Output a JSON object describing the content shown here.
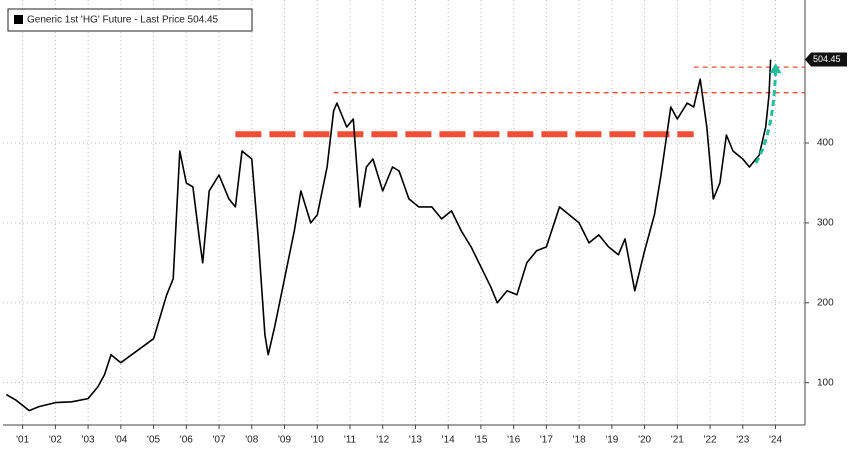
{
  "chart_data": {
    "type": "line",
    "x": [
      2001.0,
      2001.3,
      2001.7,
      2002.0,
      2002.5,
      2003.0,
      2003.5,
      2003.8,
      2004.0,
      2004.2,
      2004.5,
      2005.0,
      2005.5,
      2005.9,
      2006.1,
      2006.3,
      2006.5,
      2006.7,
      2006.9,
      2007.0,
      2007.2,
      2007.5,
      2007.8,
      2008.0,
      2008.2,
      2008.5,
      2008.7,
      2008.9,
      2009.0,
      2009.2,
      2009.5,
      2009.8,
      2010.0,
      2010.3,
      2010.5,
      2010.8,
      2011.0,
      2011.1,
      2011.4,
      2011.6,
      2011.8,
      2012.0,
      2012.2,
      2012.5,
      2012.8,
      2013.0,
      2013.3,
      2013.6,
      2014.0,
      2014.3,
      2014.6,
      2014.9,
      2015.2,
      2015.5,
      2015.8,
      2016.0,
      2016.3,
      2016.6,
      2016.9,
      2017.2,
      2017.5,
      2017.9,
      2018.2,
      2018.5,
      2018.8,
      2019.1,
      2019.4,
      2019.7,
      2019.9,
      2020.2,
      2020.5,
      2020.8,
      2021.0,
      2021.3,
      2021.5,
      2021.8,
      2022.0,
      2022.2,
      2022.4,
      2022.6,
      2022.8,
      2023.0,
      2023.2,
      2023.5,
      2023.7,
      2023.9,
      2024.0,
      2024.2,
      2024.3,
      2024.35
    ],
    "series": [
      {
        "name": "Generic 1st 'HG' Future - Last Price 504.45",
        "color": "#000000",
        "values": [
          85,
          78,
          65,
          70,
          75,
          76,
          80,
          95,
          110,
          135,
          125,
          140,
          155,
          210,
          230,
          390,
          350,
          345,
          280,
          250,
          340,
          360,
          330,
          320,
          390,
          380,
          280,
          160,
          135,
          170,
          230,
          290,
          340,
          300,
          310,
          370,
          440,
          450,
          420,
          430,
          320,
          370,
          380,
          340,
          370,
          365,
          330,
          320,
          320,
          305,
          315,
          290,
          270,
          245,
          220,
          200,
          215,
          210,
          250,
          265,
          270,
          320,
          310,
          300,
          275,
          285,
          270,
          260,
          280,
          215,
          265,
          310,
          360,
          445,
          430,
          450,
          445,
          480,
          420,
          330,
          350,
          410,
          390,
          380,
          370,
          380,
          385,
          420,
          460,
          504.45
        ]
      }
    ],
    "last_price": 504.45,
    "levels": [
      {
        "value": 411,
        "from": 2008.0,
        "to": 2022.0,
        "style": "thick"
      },
      {
        "value": 463,
        "from": 2011.0,
        "to": 2025.4,
        "style": "thin"
      },
      {
        "value": 495,
        "from": 2022.0,
        "to": 2025.4,
        "style": "thin"
      }
    ],
    "level_color": "#f04e37",
    "arrow_color": "#1fbfa0",
    "xlim": [
      2000.9,
      2025.4
    ],
    "xticks": [
      {
        "value": 2001.5,
        "label": "'01"
      },
      {
        "value": 2002.5,
        "label": "'02"
      },
      {
        "value": 2003.5,
        "label": "'03"
      },
      {
        "value": 2004.5,
        "label": "'04"
      },
      {
        "value": 2005.5,
        "label": "'05"
      },
      {
        "value": 2006.5,
        "label": "'06"
      },
      {
        "value": 2007.5,
        "label": "'07"
      },
      {
        "value": 2008.5,
        "label": "'08"
      },
      {
        "value": 2009.5,
        "label": "'09"
      },
      {
        "value": 2010.5,
        "label": "'10"
      },
      {
        "value": 2011.5,
        "label": "'11"
      },
      {
        "value": 2012.5,
        "label": "'12"
      },
      {
        "value": 2013.5,
        "label": "'13"
      },
      {
        "value": 2014.5,
        "label": "'14"
      },
      {
        "value": 2015.5,
        "label": "'15"
      },
      {
        "value": 2016.5,
        "label": "'16"
      },
      {
        "value": 2017.5,
        "label": "'17"
      },
      {
        "value": 2018.5,
        "label": "'18"
      },
      {
        "value": 2019.5,
        "label": "'19"
      },
      {
        "value": 2020.5,
        "label": "'20"
      },
      {
        "value": 2021.5,
        "label": "'21"
      },
      {
        "value": 2022.5,
        "label": "'22"
      },
      {
        "value": 2023.5,
        "label": "'23"
      },
      {
        "value": 2024.5,
        "label": "'24"
      }
    ],
    "ylim": [
      47,
      579
    ],
    "yticks": [
      100,
      200,
      300,
      400
    ],
    "grid": true
  }
}
